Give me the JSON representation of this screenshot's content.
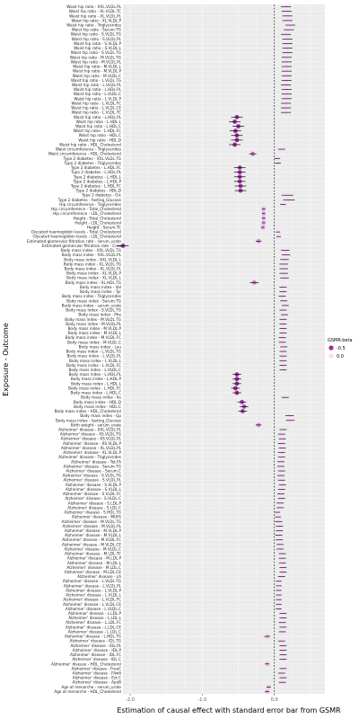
{
  "chart_data": {
    "type": "forest",
    "xlabel": "Estimation of causal effect with standard error bar from GSMR",
    "ylabel": "Exposure - Outcome",
    "xlim": [
      -2.1,
      0.7
    ],
    "xticks": [
      -2.0,
      -1.0,
      0.0
    ],
    "xtick_labels": [
      "-2.0",
      "-1.0",
      "0.0"
    ],
    "reference_line": 0.0,
    "legend": {
      "title": "GSMR.beta",
      "entries": [
        "-0.5",
        "0.0"
      ],
      "colors": [
        "#9c2a9c",
        "#ffd7ff"
      ],
      "placement": "right"
    },
    "colors": {
      "panel": "#ebebeb",
      "grid": "#ffffff",
      "bar": "#111111",
      "refline": "#000000"
    },
    "series": [
      {
        "label": "Waist hip ratio - XXL.VLDL.PL",
        "beta": 0.16,
        "se": 0.07
      },
      {
        "label": "Waist hip ratio - XL.VLDL.TC",
        "beta": 0.17,
        "se": 0.07
      },
      {
        "label": "Waist hip ratio - XL.VLDL.PL",
        "beta": 0.18,
        "se": 0.07
      },
      {
        "label": "Waist hip ratio - XL.VLDL.P",
        "beta": 0.18,
        "se": 0.07
      },
      {
        "label": "Waist hip ratio - Triglycerides",
        "beta": 0.22,
        "se": 0.07
      },
      {
        "label": "Waist hip ratio - Serum.TG",
        "beta": 0.2,
        "se": 0.07
      },
      {
        "label": "Waist hip ratio - S.VLDL.TG",
        "beta": 0.16,
        "se": 0.07
      },
      {
        "label": "Waist hip ratio - S.VLDL.PL",
        "beta": 0.18,
        "se": 0.07
      },
      {
        "label": "Waist hip ratio - S.VLDL.P",
        "beta": 0.18,
        "se": 0.07
      },
      {
        "label": "Waist hip ratio - S.VLDL.L",
        "beta": 0.18,
        "se": 0.07
      },
      {
        "label": "Waist hip ratio - S.VLDL.TG",
        "beta": 0.18,
        "se": 0.07
      },
      {
        "label": "Waist hip ratio - M.VLDL.TG",
        "beta": 0.17,
        "se": 0.07
      },
      {
        "label": "Waist hip ratio - M.VLDL.PL",
        "beta": 0.17,
        "se": 0.07
      },
      {
        "label": "Waist hip ratio - M.VLDL.L",
        "beta": 0.17,
        "se": 0.07
      },
      {
        "label": "Waist hip ratio - M.VLDL.P",
        "beta": 0.17,
        "se": 0.07
      },
      {
        "label": "Waist hip ratio - M.VLDL.C",
        "beta": 0.17,
        "se": 0.07
      },
      {
        "label": "Waist hip ratio - L.VLDL.TG",
        "beta": 0.17,
        "se": 0.07
      },
      {
        "label": "Waist hip ratio - L.VLDL.PL",
        "beta": 0.16,
        "se": 0.07
      },
      {
        "label": "Waist hip ratio - L.HDL.PL",
        "beta": 0.17,
        "se": 0.07
      },
      {
        "label": "Waist hip ratio - L.VLDL.C",
        "beta": 0.17,
        "se": 0.07
      },
      {
        "label": "Waist hip ratio - L.VLDL.P",
        "beta": 0.17,
        "se": 0.07
      },
      {
        "label": "Waist hip ratio - L.VLDL.FC",
        "beta": 0.16,
        "se": 0.07
      },
      {
        "label": "Waist hip ratio - L.VLDL.CE",
        "beta": 0.16,
        "se": 0.07
      },
      {
        "label": "Waist hip ratio - L.VLDL.TC",
        "beta": 0.16,
        "se": 0.07
      },
      {
        "label": "Waist hip ratio - L.HDL.PL",
        "beta": -0.52,
        "se": 0.08
      },
      {
        "label": "Waist hip ratio - L.HDL.L",
        "beta": -0.55,
        "se": 0.08
      },
      {
        "label": "Waist hip ratio - L.HDL.C",
        "beta": -0.5,
        "se": 0.08
      },
      {
        "label": "Waist hip ratio - L.HDL.FC",
        "beta": -0.54,
        "se": 0.08
      },
      {
        "label": "Waist hip ratio - HDL.C",
        "beta": -0.52,
        "se": 0.08
      },
      {
        "label": "Waist hip ratio - HDL.D",
        "beta": -0.52,
        "se": 0.08
      },
      {
        "label": "Waist hip ratio - HDL_Cholesterol",
        "beta": -0.55,
        "se": 0.08
      },
      {
        "label": "Waist circumference - Triglycerides",
        "beta": 0.1,
        "se": 0.05
      },
      {
        "label": "Waist circumference - HDL_Cholesterol",
        "beta": -0.3,
        "se": 0.05
      },
      {
        "label": "Type 2 diabetes - XXL.VLDL.TG",
        "beta": 0.04,
        "se": 0.04
      },
      {
        "label": "Type 2 diabetes - Triglycerides",
        "beta": 0.05,
        "se": 0.04
      },
      {
        "label": "Type 2 diabetes - L.HDL.FC",
        "beta": -0.48,
        "se": 0.08
      },
      {
        "label": "Type 2 diabetes - L.HDL.PL",
        "beta": -0.48,
        "se": 0.08
      },
      {
        "label": "Type 2 diabetes - L.HDL.L",
        "beta": -0.48,
        "se": 0.08
      },
      {
        "label": "Type 2 diabetes - L.HDL.P",
        "beta": -0.48,
        "se": 0.08
      },
      {
        "label": "Type 2 diabetes - L.HDL.FC",
        "beta": -0.47,
        "se": 0.08
      },
      {
        "label": "Type 2 diabetes - HDL.D",
        "beta": -0.47,
        "se": 0.08
      },
      {
        "label": "Type 2 diabetes - Glc",
        "beta": 0.18,
        "se": 0.08
      },
      {
        "label": "Type 2 diabetes - fasting_Glucose",
        "beta": 0.2,
        "se": 0.08
      },
      {
        "label": "Hip circumference - Triglycerides",
        "beta": 0.12,
        "se": 0.04
      },
      {
        "label": "Hip circumference - Total_Cholesterol",
        "beta": -0.15,
        "se": 0.02
      },
      {
        "label": "Hip circumference - LDL_Cholesterol",
        "beta": -0.15,
        "se": 0.02
      },
      {
        "label": "Height - Total_Cholesterol",
        "beta": -0.15,
        "se": 0.02
      },
      {
        "label": "Height - LDL_Cholesterol",
        "beta": -0.15,
        "se": 0.02
      },
      {
        "label": "Height - Serum.TC",
        "beta": -0.16,
        "se": 0.02
      },
      {
        "label": "Glycated haemoglobin levels - Total_Cholesterol",
        "beta": 0.05,
        "se": 0.03
      },
      {
        "label": "Glycated haemoglobin levels - LDL_Cholesterol",
        "beta": 0.06,
        "se": 0.03
      },
      {
        "label": "Estimated glomerular filtration rate - serum_urate",
        "beta": -0.22,
        "se": 0.04
      },
      {
        "label": "Estimated glomerular filtration rate - Crea",
        "beta": -2.1,
        "se": 0.08
      },
      {
        "label": "Body mass index - XXL.VLDL.TG",
        "beta": 0.15,
        "se": 0.06
      },
      {
        "label": "Body mass index - XXL.VLDL.PL",
        "beta": 0.16,
        "se": 0.06
      },
      {
        "label": "Body mass index - XXL.VLDL.L",
        "beta": 0.14,
        "se": 0.06
      },
      {
        "label": "Body mass index - XL.VLDL.TG",
        "beta": 0.13,
        "se": 0.06
      },
      {
        "label": "Body mass index - XL.VLDL.PL",
        "beta": 0.13,
        "se": 0.06
      },
      {
        "label": "Body mass index - XL.VLDL.P",
        "beta": 0.13,
        "se": 0.06
      },
      {
        "label": "Body mass index - XL.VLDL.L",
        "beta": 0.14,
        "se": 0.06
      },
      {
        "label": "Body mass index - XL.HDL.TG",
        "beta": -0.28,
        "se": 0.06
      },
      {
        "label": "Body mass index - Val",
        "beta": 0.12,
        "se": 0.05
      },
      {
        "label": "Body mass index - Tyr",
        "beta": 0.12,
        "se": 0.05
      },
      {
        "label": "Body mass index - Triglycerides",
        "beta": 0.11,
        "se": 0.05
      },
      {
        "label": "Body mass index - Serum.TG",
        "beta": 0.13,
        "se": 0.05
      },
      {
        "label": "Body mass index - serum_urate",
        "beta": 0.15,
        "se": 0.05
      },
      {
        "label": "Body mass index - S.VLDL.TG",
        "beta": 0.12,
        "se": 0.05
      },
      {
        "label": "Body mass index - Phe",
        "beta": 0.14,
        "se": 0.05
      },
      {
        "label": "Body mass index - M.VLDL.TG",
        "beta": 0.12,
        "se": 0.05
      },
      {
        "label": "Body mass index - M.VLDL.PL",
        "beta": 0.12,
        "se": 0.05
      },
      {
        "label": "Body mass index - M.VLDL.P",
        "beta": 0.12,
        "se": 0.05
      },
      {
        "label": "Body mass index - M.VLDL.L",
        "beta": 0.12,
        "se": 0.05
      },
      {
        "label": "Body mass index - M.VLDL.FC",
        "beta": 0.11,
        "se": 0.05
      },
      {
        "label": "Body mass index - M.VLDL.C",
        "beta": 0.11,
        "se": 0.05
      },
      {
        "label": "Body mass index - Leu",
        "beta": 0.13,
        "se": 0.05
      },
      {
        "label": "Body mass index - L.VLDL.TG",
        "beta": 0.12,
        "se": 0.05
      },
      {
        "label": "Body mass index - L.VLDL.PL",
        "beta": 0.12,
        "se": 0.05
      },
      {
        "label": "Body mass index - L.VLDL.L",
        "beta": 0.12,
        "se": 0.05
      },
      {
        "label": "Body mass index - L.VLDL.FC",
        "beta": 0.12,
        "se": 0.05
      },
      {
        "label": "Body mass index - L.VLDL.C",
        "beta": 0.12,
        "se": 0.05
      },
      {
        "label": "Body mass index - L.HDL.PL",
        "beta": -0.52,
        "se": 0.06
      },
      {
        "label": "Body mass index - L.HDL.P",
        "beta": -0.52,
        "se": 0.06
      },
      {
        "label": "Body mass index - L.HDL.L",
        "beta": -0.52,
        "se": 0.06
      },
      {
        "label": "Body mass index - L.HDL.FC",
        "beta": -0.54,
        "se": 0.06
      },
      {
        "label": "Body mass index - L.HDL.C",
        "beta": -0.52,
        "se": 0.06
      },
      {
        "label": "Body mass index - Ile",
        "beta": 0.15,
        "se": 0.05
      },
      {
        "label": "Body mass index - HDL.D",
        "beta": -0.45,
        "se": 0.06
      },
      {
        "label": "Body mass index - HDL.C",
        "beta": -0.42,
        "se": 0.06
      },
      {
        "label": "Body mass index - HDL_Cholesterol",
        "beta": -0.44,
        "se": 0.06
      },
      {
        "label": "Body mass index - Gp",
        "beta": 0.21,
        "se": 0.06
      },
      {
        "label": "Body mass index - fasting_Glucose",
        "beta": 0.22,
        "se": 0.06
      },
      {
        "label": "Birth weight - serum_urate",
        "beta": -0.22,
        "se": 0.04
      },
      {
        "label": "Alzheimer' disease - XXL.VLDL.PL",
        "beta": 0.12,
        "se": 0.05
      },
      {
        "label": "Alzheimer' disease - XS.VLDL.TG",
        "beta": 0.1,
        "se": 0.05
      },
      {
        "label": "Alzheimer' disease - XS.VLDL.PL",
        "beta": 0.11,
        "se": 0.05
      },
      {
        "label": "Alzheimer' disease - XS.VLDL.P",
        "beta": 0.1,
        "se": 0.05
      },
      {
        "label": "Alzheimer' disease - XL.VLDL.PL",
        "beta": 0.11,
        "se": 0.05
      },
      {
        "label": "Alzheimer' disease - XL.VLDL.P",
        "beta": 0.1,
        "se": 0.05
      },
      {
        "label": "Alzheimer' disease - Triglycerides",
        "beta": 0.1,
        "se": 0.05
      },
      {
        "label": "Alzheimer' disease - Tot.FA",
        "beta": 0.09,
        "se": 0.05
      },
      {
        "label": "Alzheimer' disease - Serum.TG",
        "beta": 0.09,
        "se": 0.05
      },
      {
        "label": "Alzheimer' disease - Serum.C",
        "beta": 0.1,
        "se": 0.05
      },
      {
        "label": "Alzheimer' disease - S.VLDL.TG",
        "beta": 0.09,
        "se": 0.05
      },
      {
        "label": "Alzheimer' disease - S.VLDL.PL",
        "beta": 0.1,
        "se": 0.05
      },
      {
        "label": "Alzheimer' disease - S.VLDL.P",
        "beta": 0.11,
        "se": 0.05
      },
      {
        "label": "Alzheimer' disease - S.VLDL.L",
        "beta": 0.1,
        "se": 0.05
      },
      {
        "label": "Alzheimer' disease - S.VLDL.FC",
        "beta": 0.09,
        "se": 0.05
      },
      {
        "label": "Alzheimer' disease - S.VLDL.C",
        "beta": 0.1,
        "se": 0.05
      },
      {
        "label": "Alzheimer' disease - S.LDL.P",
        "beta": 0.08,
        "se": 0.05
      },
      {
        "label": "Alzheimer' disease - S.LDL.C",
        "beta": 0.08,
        "se": 0.05
      },
      {
        "label": "Alzheimer' disease - S.HDL.TG",
        "beta": 0.04,
        "se": 0.04
      },
      {
        "label": "Alzheimer' disease - MUFA",
        "beta": 0.05,
        "se": 0.04
      },
      {
        "label": "Alzheimer' disease - M.VLDL.TG",
        "beta": 0.06,
        "se": 0.05
      },
      {
        "label": "Alzheimer' disease - M.VLDL.PL",
        "beta": 0.07,
        "se": 0.05
      },
      {
        "label": "Alzheimer' disease - M.VLDL.P",
        "beta": 0.07,
        "se": 0.05
      },
      {
        "label": "Alzheimer' disease - M.VLDL.L",
        "beta": 0.06,
        "se": 0.05
      },
      {
        "label": "Alzheimer' disease - M.VLDL.FC",
        "beta": 0.07,
        "se": 0.05
      },
      {
        "label": "Alzheimer' disease - M.VLDL.CE",
        "beta": 0.08,
        "se": 0.05
      },
      {
        "label": "Alzheimer' disease - M.VLDL.C",
        "beta": 0.08,
        "se": 0.05
      },
      {
        "label": "Alzheimer' disease - M.LDL.TC",
        "beta": 0.11,
        "se": 0.05
      },
      {
        "label": "Alzheimer' disease - M.LDL.P",
        "beta": 0.11,
        "se": 0.05
      },
      {
        "label": "Alzheimer' disease - M.LDL.L",
        "beta": 0.11,
        "se": 0.05
      },
      {
        "label": "Alzheimer' disease - M.LDL.C",
        "beta": 0.12,
        "se": 0.05
      },
      {
        "label": "Alzheimer' disease - M.LDL.CE",
        "beta": 0.12,
        "se": 0.05
      },
      {
        "label": "Alzheimer' disease - LA",
        "beta": 0.1,
        "se": 0.05
      },
      {
        "label": "Alzheimer' disease - L.VLDL.TG",
        "beta": 0.06,
        "se": 0.04
      },
      {
        "label": "Alzheimer' disease - L.VLDL.PL",
        "beta": 0.06,
        "se": 0.04
      },
      {
        "label": "Alzheimer' disease - L.VLDL.P",
        "beta": 0.06,
        "se": 0.04
      },
      {
        "label": "Alzheimer' disease - L.VLDL.L",
        "beta": 0.06,
        "se": 0.04
      },
      {
        "label": "Alzheimer' disease - L.VLDL.FC",
        "beta": 0.06,
        "se": 0.04
      },
      {
        "label": "Alzheimer' disease - L.VLDL.CE",
        "beta": 0.06,
        "se": 0.04
      },
      {
        "label": "Alzheimer' disease - L.VLDL.C",
        "beta": 0.06,
        "se": 0.04
      },
      {
        "label": "Alzheimer' disease - L.LDL.P",
        "beta": 0.12,
        "se": 0.05
      },
      {
        "label": "Alzheimer' disease - L.LDL.L",
        "beta": 0.12,
        "se": 0.05
      },
      {
        "label": "Alzheimer' disease - L.LDL.FC",
        "beta": 0.11,
        "se": 0.05
      },
      {
        "label": "Alzheimer' disease - L.LDL.CE",
        "beta": 0.12,
        "se": 0.05
      },
      {
        "label": "Alzheimer' disease - L.LDL.C",
        "beta": 0.11,
        "se": 0.05
      },
      {
        "label": "Alzheimer' disease - L.HDL.TG",
        "beta": -0.1,
        "se": 0.04
      },
      {
        "label": "Alzheimer' disease - IDL.TG",
        "beta": 0.1,
        "se": 0.05
      },
      {
        "label": "Alzheimer' disease - IDL.PL",
        "beta": 0.12,
        "se": 0.05
      },
      {
        "label": "Alzheimer' disease - IDL.P",
        "beta": 0.12,
        "se": 0.05
      },
      {
        "label": "Alzheimer' disease - IDL.FC",
        "beta": 0.12,
        "se": 0.05
      },
      {
        "label": "Alzheimer' disease - IDL.C",
        "beta": 0.12,
        "se": 0.05
      },
      {
        "label": "Alzheimer' disease - HDL_Cholesterol",
        "beta": -0.1,
        "se": 0.03
      },
      {
        "label": "Alzheimer' disease - FreeC",
        "beta": 0.12,
        "se": 0.05
      },
      {
        "label": "Alzheimer' disease - FAw6",
        "beta": 0.1,
        "se": 0.05
      },
      {
        "label": "Alzheimer' disease - Est.C",
        "beta": 0.12,
        "se": 0.05
      },
      {
        "label": "Alzheimer' disease - ApoB",
        "beta": 0.11,
        "se": 0.05
      },
      {
        "label": "Age at menarche - serum_urate",
        "beta": -0.08,
        "se": 0.03
      },
      {
        "label": "Age at menarche - HDL_Cholesterol",
        "beta": -0.1,
        "se": 0.03
      }
    ]
  }
}
